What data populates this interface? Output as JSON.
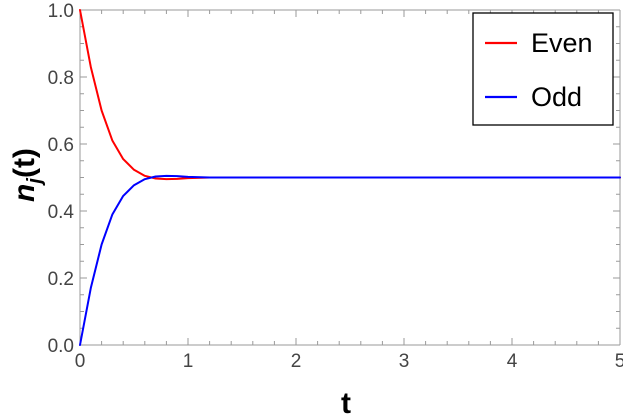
{
  "chart_data": {
    "type": "line",
    "title": "",
    "xlabel": "t",
    "ylabel_main": "n",
    "ylabel_sub": "j",
    "ylabel_rest": "(t)",
    "xlim": [
      0,
      5
    ],
    "ylim": [
      0,
      1
    ],
    "x_ticks": [
      0,
      1,
      2,
      3,
      4,
      5
    ],
    "y_ticks": [
      0.0,
      0.2,
      0.4,
      0.6,
      0.8,
      1.0
    ],
    "x_tick_labels": [
      "0",
      "1",
      "2",
      "3",
      "4",
      "5"
    ],
    "y_tick_labels": [
      "0.0",
      "0.2",
      "0.4",
      "0.6",
      "0.8",
      "1.0"
    ],
    "grid": false,
    "legend_position": "top-right",
    "series": [
      {
        "name": "Even",
        "color": "#ff0000",
        "x": [
          0,
          0.1,
          0.2,
          0.3,
          0.4,
          0.5,
          0.6,
          0.7,
          0.8,
          0.9,
          1.0,
          1.2,
          1.4,
          1.6,
          2.0,
          3.0,
          4.0,
          5.0
        ],
        "y": [
          1.0,
          0.83,
          0.7,
          0.61,
          0.555,
          0.523,
          0.505,
          0.497,
          0.495,
          0.496,
          0.498,
          0.5,
          0.5,
          0.5,
          0.5,
          0.5,
          0.5,
          0.5
        ]
      },
      {
        "name": "Odd",
        "color": "#0000ff",
        "x": [
          0,
          0.1,
          0.2,
          0.3,
          0.4,
          0.5,
          0.6,
          0.7,
          0.8,
          0.9,
          1.0,
          1.2,
          1.4,
          1.6,
          2.0,
          3.0,
          4.0,
          5.0
        ],
        "y": [
          0.0,
          0.17,
          0.3,
          0.39,
          0.445,
          0.477,
          0.495,
          0.503,
          0.505,
          0.504,
          0.502,
          0.5,
          0.5,
          0.5,
          0.5,
          0.5,
          0.5,
          0.5
        ]
      }
    ]
  }
}
